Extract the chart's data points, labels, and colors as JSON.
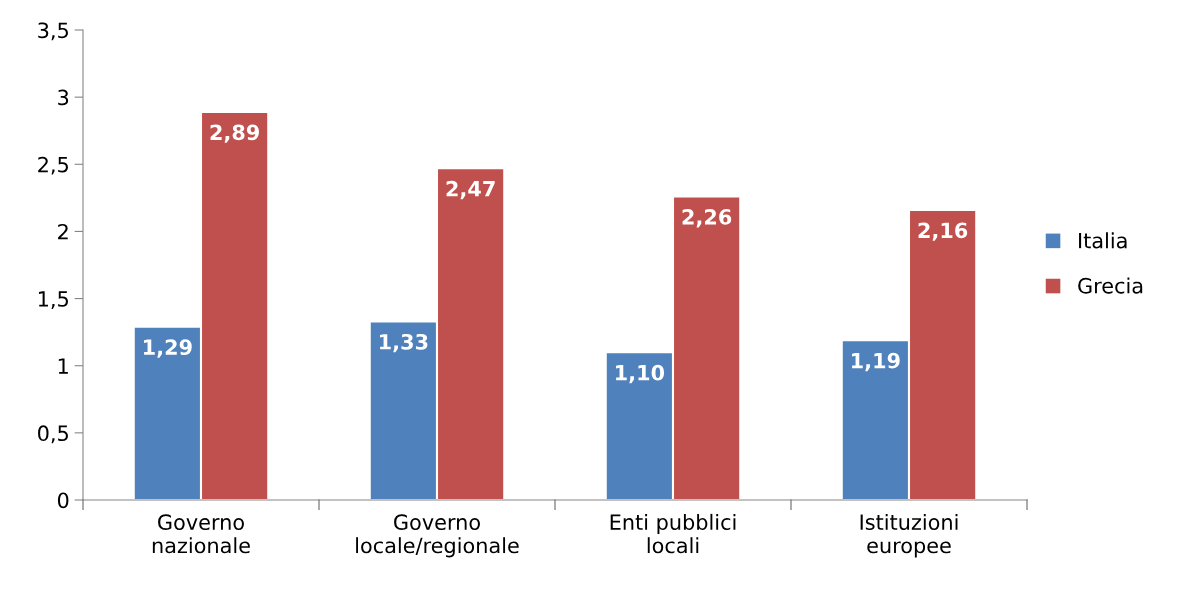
{
  "chart_data": {
    "type": "bar",
    "categories": [
      "Governo\nnazionale",
      "Governo\nlocale/regionale",
      "Enti pubblici\nlocali",
      "Istituzioni\neuropee"
    ],
    "series": [
      {
        "name": "Italia",
        "color": "#4f81bd",
        "values": [
          1.29,
          1.33,
          1.1,
          1.19
        ],
        "value_labels": [
          "1,29",
          "1,33",
          "1,10",
          "1,19"
        ]
      },
      {
        "name": "Grecia",
        "color": "#c0504d",
        "values": [
          2.89,
          2.47,
          2.26,
          2.16
        ],
        "value_labels": [
          "2,89",
          "2,47",
          "2,26",
          "2,16"
        ]
      }
    ],
    "ylim": [
      0,
      3.5
    ],
    "yticks": [
      0,
      {
        "value": 0.5,
        "label": "0,5"
      },
      1,
      {
        "value": 1.5,
        "label": "1,5"
      },
      2,
      {
        "value": 2.5,
        "label": "2,5"
      },
      3,
      {
        "value": 3.5,
        "label": "3,5"
      }
    ],
    "grid": false,
    "legend": "right"
  }
}
